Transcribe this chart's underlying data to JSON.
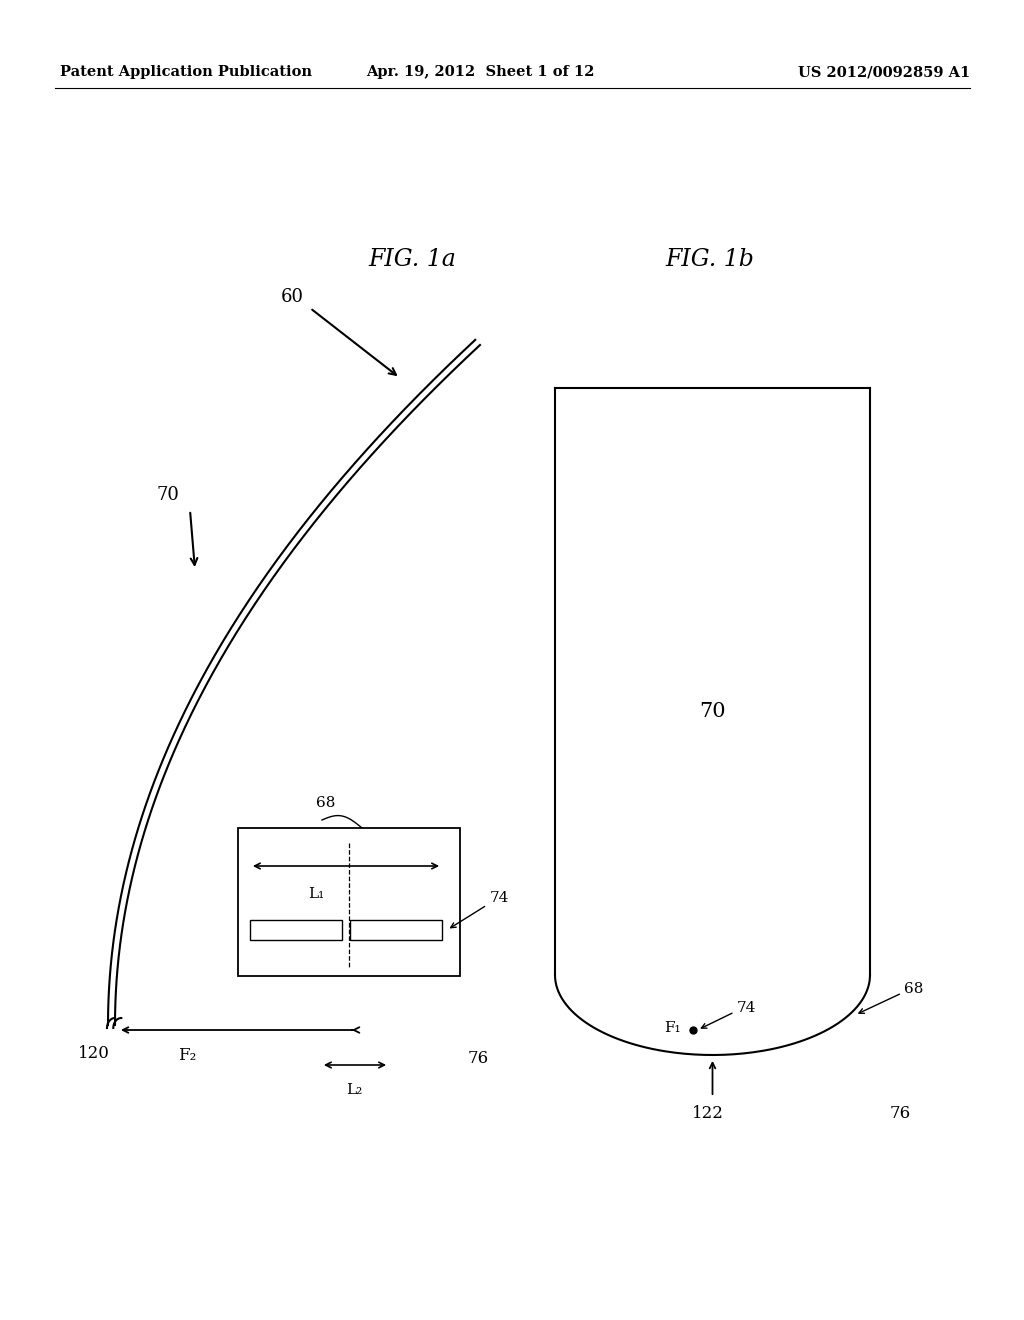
{
  "bg_color": "#ffffff",
  "header_left": "Patent Application Publication",
  "header_center": "Apr. 19, 2012  Sheet 1 of 12",
  "header_right": "US 2012/0092859 A1",
  "fig1a_label": "FIG. 1a",
  "fig1b_label": "FIG. 1b",
  "label_60": "60",
  "label_70_a": "70",
  "label_70_b": "70",
  "label_68_a": "68",
  "label_68_b": "68",
  "label_74_a": "74",
  "label_74_b": "74",
  "label_F2": "F₂",
  "label_F1": "F₁",
  "label_L1": "L₁",
  "label_L2": "L₂",
  "label_120": "120",
  "label_122": "122",
  "label_76_a": "76",
  "label_76_b": "76"
}
